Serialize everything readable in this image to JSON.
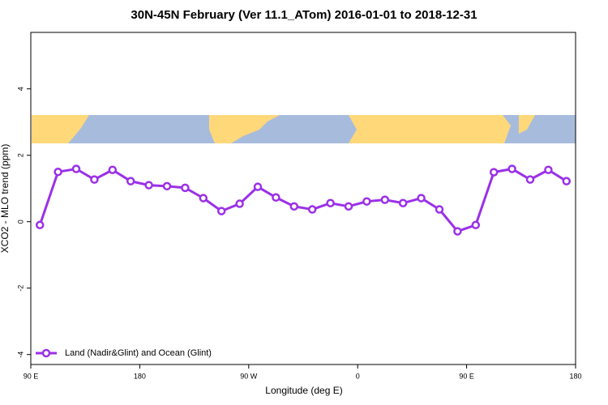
{
  "chart_data": {
    "type": "line",
    "title": "30N-45N February (Ver 11.1_ATom)   2016-01-01 to 2018-12-31",
    "x_label": "Longitude (deg E)",
    "y_label": "XCO2 - MLO trend (ppm)",
    "x": [
      97.5,
      112.5,
      127.5,
      142.5,
      157.5,
      172.5,
      187.5,
      202.5,
      217.5,
      232.5,
      247.5,
      262.5,
      277.5,
      292.5,
      307.5,
      322.5,
      337.5,
      352.5,
      367.5,
      382.5,
      397.5,
      412.5,
      427.5,
      442.5,
      457.5,
      472.5,
      487.5,
      502.5,
      517.5,
      532.5
    ],
    "series": [
      {
        "name": "Land (Nadir&Glint) and Ocean (Glint)",
        "color": "#9b30e8",
        "values": [
          -0.1,
          1.5,
          1.59,
          1.27,
          1.56,
          1.22,
          1.1,
          1.07,
          1.02,
          0.71,
          0.32,
          0.54,
          1.05,
          0.73,
          0.46,
          0.37,
          0.56,
          0.46,
          0.61,
          0.66,
          0.56,
          0.71,
          0.37,
          -0.29,
          -0.1,
          1.49,
          1.59,
          1.27,
          1.56,
          1.22
        ]
      }
    ],
    "xlim": [
      90,
      540
    ],
    "xticks": [
      {
        "value": 90,
        "label": "90 E"
      },
      {
        "value": 180,
        "label": "180"
      },
      {
        "value": 270,
        "label": "90 W"
      },
      {
        "value": 360,
        "label": "0"
      },
      {
        "value": 450,
        "label": "90 E"
      },
      {
        "value": 540,
        "label": "180"
      }
    ],
    "ylim": [
      -4.3,
      5.7
    ],
    "yticks": [
      -4,
      -2,
      0,
      2,
      4
    ],
    "legend": "bottom-left"
  }
}
